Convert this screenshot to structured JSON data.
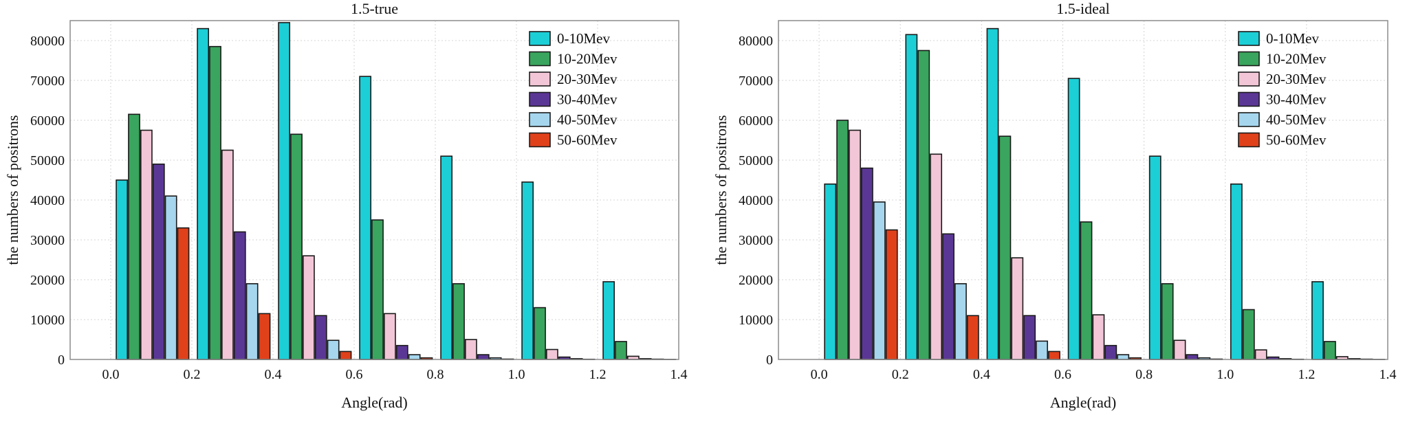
{
  "chart_data": [
    {
      "type": "bar",
      "title": "1.5-true",
      "xlabel": "Angle(rad)",
      "ylabel": "the numbers of positrons",
      "xlim": [
        -0.1,
        1.4
      ],
      "ylim": [
        0,
        85000
      ],
      "xticks": [
        "0.0",
        "0.2",
        "0.4",
        "0.6",
        "0.8",
        "1.0",
        "1.2",
        "1.4"
      ],
      "yticks": [
        "0",
        "10000",
        "20000",
        "30000",
        "40000",
        "50000",
        "60000",
        "70000",
        "80000"
      ],
      "grid": true,
      "legend_position": "top-right",
      "categories": [
        "0.0",
        "0.2",
        "0.4",
        "0.6",
        "0.8",
        "1.0",
        "1.2"
      ],
      "series": [
        {
          "name": "0-10Mev",
          "color": "#1ccfd6",
          "values": [
            45000,
            83000,
            84500,
            71000,
            51000,
            44500,
            19500
          ]
        },
        {
          "name": "10-20Mev",
          "color": "#3aa55e",
          "values": [
            61500,
            78500,
            56500,
            35000,
            19000,
            13000,
            4500
          ]
        },
        {
          "name": "20-30Mev",
          "color": "#f2c6d6",
          "values": [
            57500,
            52500,
            26000,
            11500,
            5000,
            2500,
            800
          ]
        },
        {
          "name": "30-40Mev",
          "color": "#5b3795",
          "values": [
            49000,
            32000,
            11000,
            3500,
            1200,
            600,
            200
          ]
        },
        {
          "name": "40-50Mev",
          "color": "#a6d6ee",
          "values": [
            41000,
            19000,
            4800,
            1200,
            400,
            200,
            80
          ]
        },
        {
          "name": "50-60Mev",
          "color": "#e0411b",
          "values": [
            33000,
            11500,
            2000,
            400,
            100,
            50,
            20
          ]
        }
      ]
    },
    {
      "type": "bar",
      "title": "1.5-ideal",
      "xlabel": "Angle(rad)",
      "ylabel": "the numbers of positrons",
      "xlim": [
        -0.1,
        1.4
      ],
      "ylim": [
        0,
        85000
      ],
      "xticks": [
        "0.0",
        "0.2",
        "0.4",
        "0.6",
        "0.8",
        "1.0",
        "1.2",
        "1.4"
      ],
      "yticks": [
        "0",
        "10000",
        "20000",
        "30000",
        "40000",
        "50000",
        "60000",
        "70000",
        "80000"
      ],
      "grid": true,
      "legend_position": "top-right",
      "categories": [
        "0.0",
        "0.2",
        "0.4",
        "0.6",
        "0.8",
        "1.0",
        "1.2"
      ],
      "series": [
        {
          "name": "0-10Mev",
          "color": "#1ccfd6",
          "values": [
            44000,
            81500,
            83000,
            70500,
            51000,
            44000,
            19500
          ]
        },
        {
          "name": "10-20Mev",
          "color": "#3aa55e",
          "values": [
            60000,
            77500,
            56000,
            34500,
            19000,
            12500,
            4500
          ]
        },
        {
          "name": "20-30Mev",
          "color": "#f2c6d6",
          "values": [
            57500,
            51500,
            25500,
            11200,
            4800,
            2400,
            700
          ]
        },
        {
          "name": "30-40Mev",
          "color": "#5b3795",
          "values": [
            48000,
            31500,
            11000,
            3500,
            1200,
            600,
            200
          ]
        },
        {
          "name": "40-50Mev",
          "color": "#a6d6ee",
          "values": [
            39500,
            19000,
            4600,
            1200,
            400,
            200,
            80
          ]
        },
        {
          "name": "50-60Mev",
          "color": "#e0411b",
          "values": [
            32500,
            11000,
            2000,
            400,
            100,
            50,
            20
          ]
        }
      ]
    }
  ]
}
